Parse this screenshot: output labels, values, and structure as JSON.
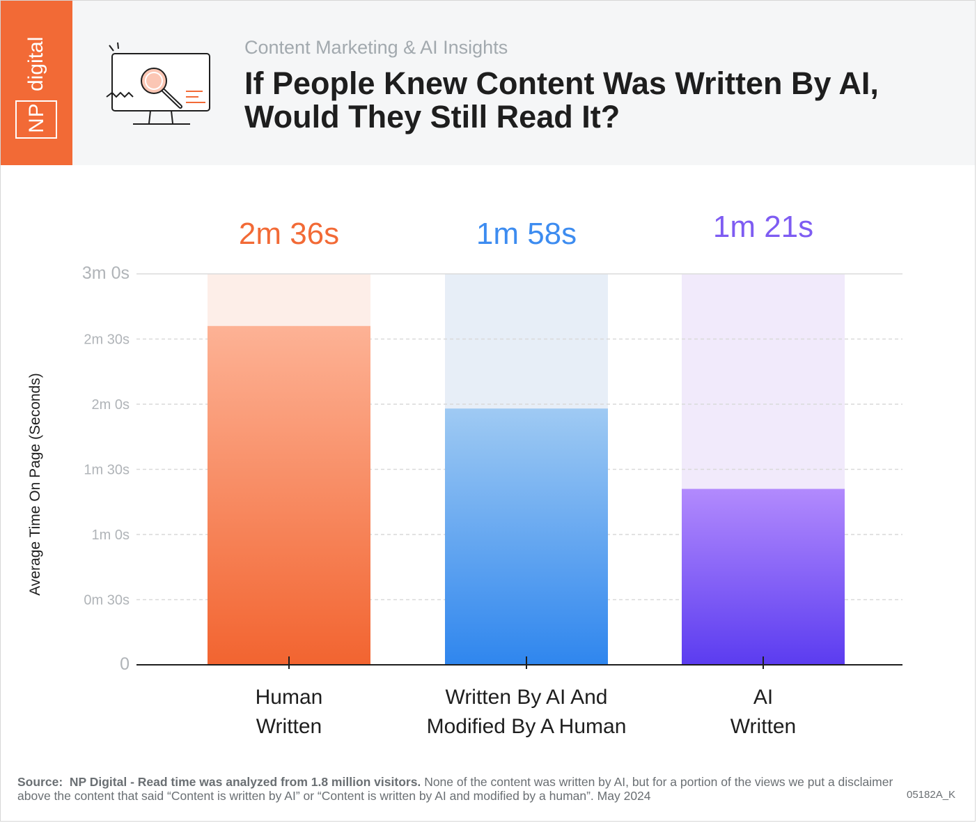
{
  "brand": {
    "line1": "NP",
    "line2": "digital"
  },
  "header": {
    "subtitle": "Content Marketing & AI Insights",
    "title": "If People Knew Content Was Written By AI, Would They Still Read It?"
  },
  "chart_data": {
    "type": "bar",
    "categories": [
      [
        "Human",
        "Written"
      ],
      [
        "Written By AI And",
        "Modified By A Human"
      ],
      [
        "AI",
        "Written"
      ]
    ],
    "values": [
      156,
      118,
      81
    ],
    "value_labels": [
      "2m 36s",
      "1m 58s",
      "1m 21s"
    ],
    "ylabel": "Average Time On Page (Seconds)",
    "ylim": [
      0,
      180
    ],
    "yticks": [
      0,
      30,
      60,
      90,
      120,
      150,
      180
    ],
    "ytick_labels": [
      "0",
      "0m 30s",
      "1m 0s",
      "1m 30s",
      "2m 0s",
      "2m 30s",
      "3m 0s"
    ],
    "grid": true,
    "colors": {
      "bars_top": [
        "#fdb295",
        "#9fcaf3",
        "#b28afd"
      ],
      "bars_bottom": [
        "#f26430",
        "#2f86ee",
        "#5b3cf0"
      ],
      "bars_bg": [
        "#fdeee8",
        "#e7eef7",
        "#f1eafb"
      ],
      "labels": [
        "#f26a36",
        "#3d8cf0",
        "#7e5cf2"
      ]
    }
  },
  "footer": {
    "source_label": "Source:",
    "source_bold": "NP Digital - Read time was analyzed from 1.8 million visitors.",
    "source_text": "None of the content was written by AI, but for a portion of the views we put a disclaimer above the content that said “Content is written by AI” or “Content is written by AI and modified by a human”. May 2024",
    "code": "05182A_K"
  }
}
